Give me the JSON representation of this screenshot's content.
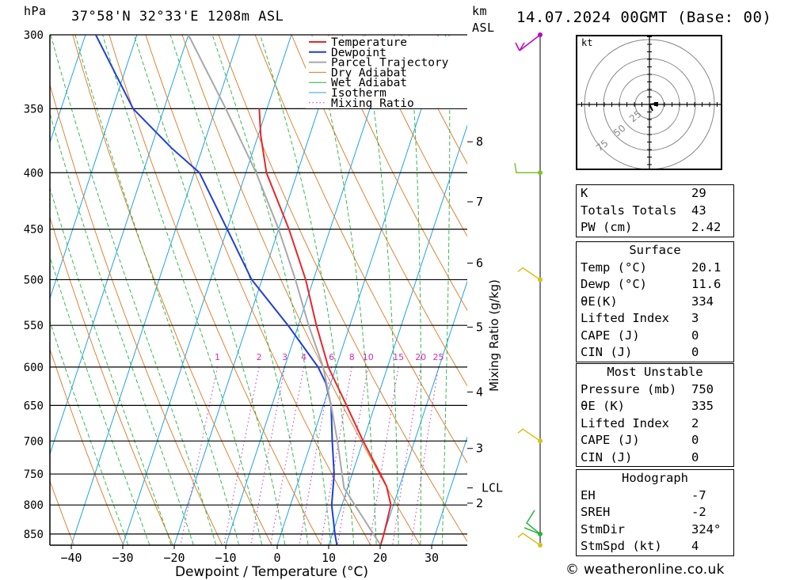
{
  "header": {
    "pressure_unit": "hPa",
    "location": "37°58'N  32°33'E  1208m  ASL",
    "height_unit": "km",
    "height_ref": "ASL",
    "datetime": "14.07.2024  00GMT  (Base: 00)"
  },
  "chart_data": {
    "type": "line",
    "title": "37°58'N  32°33'E  1208m  ASL",
    "xlabel": "Dewpoint / Temperature (°C)",
    "ylabel": "hPa",
    "right_label": "Mixing Ratio (g/kg)",
    "xlim": [
      -45,
      36
    ],
    "ylim": [
      870,
      300
    ],
    "pressure_ticks": [
      300,
      350,
      400,
      450,
      500,
      550,
      600,
      650,
      700,
      750,
      800,
      850
    ],
    "temp_ticks": [
      -40,
      -30,
      -20,
      -10,
      0,
      10,
      20,
      30
    ],
    "height_ticks_km": [
      {
        "label": "8",
        "p": 375
      },
      {
        "label": "7",
        "p": 425
      },
      {
        "label": "6",
        "p": 483
      },
      {
        "label": "5",
        "p": 552
      },
      {
        "label": "4",
        "p": 632
      },
      {
        "label": "3",
        "p": 711
      },
      {
        "label": "LCL",
        "p": 772
      },
      {
        "label": "2",
        "p": 797
      }
    ],
    "mixing_ratio_labels": [
      "1",
      "2",
      "3",
      "4",
      "6",
      "8",
      "10",
      "15",
      "20",
      "25"
    ],
    "legend": [
      "Temperature",
      "Dewpoint",
      "Parcel Trajectory",
      "Dry Adiabat",
      "Wet Adiabat",
      "Isotherm",
      "Mixing Ratio"
    ],
    "legend_position": "top-right",
    "series": [
      {
        "name": "Temperature",
        "color": "#e8262b",
        "points": [
          [
            870,
            20.1
          ],
          [
            850,
            20.0
          ],
          [
            800,
            19.5
          ],
          [
            770,
            17.5
          ],
          [
            750,
            15.5
          ],
          [
            700,
            10.0
          ],
          [
            650,
            4.5
          ],
          [
            600,
            -1.5
          ],
          [
            550,
            -6.5
          ],
          [
            500,
            -11.5
          ],
          [
            450,
            -18.0
          ],
          [
            400,
            -26.0
          ],
          [
            370,
            -29.5
          ],
          [
            350,
            -31.5
          ]
        ]
      },
      {
        "name": "Dewpoint",
        "color": "#1f3fd6",
        "points": [
          [
            870,
            11.6
          ],
          [
            850,
            10.5
          ],
          [
            800,
            8.0
          ],
          [
            750,
            6.5
          ],
          [
            700,
            4.0
          ],
          [
            650,
            1.5
          ],
          [
            620,
            -1.0
          ],
          [
            600,
            -3.5
          ],
          [
            550,
            -12.0
          ],
          [
            500,
            -22.0
          ],
          [
            450,
            -30.0
          ],
          [
            400,
            -39.0
          ],
          [
            380,
            -46.0
          ],
          [
            350,
            -56.0
          ],
          [
            300,
            -68.0
          ]
        ]
      },
      {
        "name": "Parcel Trajectory",
        "color": "#a8a8a8",
        "points": [
          [
            870,
            20.1
          ],
          [
            800,
            12.5
          ],
          [
            772,
            9.3
          ],
          [
            700,
            5.0
          ],
          [
            650,
            1.5
          ],
          [
            600,
            -2.5
          ],
          [
            550,
            -8.0
          ],
          [
            500,
            -13.5
          ],
          [
            450,
            -20.0
          ],
          [
            400,
            -28.0
          ],
          [
            350,
            -38.0
          ],
          [
            300,
            -50.0
          ]
        ]
      }
    ]
  },
  "wind_barbs_hpa": [
    300,
    400,
    500,
    700,
    850,
    870
  ],
  "hodograph": {
    "unit": "kt",
    "rings": [
      "25",
      "50",
      "75"
    ]
  },
  "stats_indices": [
    {
      "label": "K",
      "value": "29"
    },
    {
      "label": "Totals Totals",
      "value": "43"
    },
    {
      "label": "PW (cm)",
      "value": "2.42"
    }
  ],
  "surface": {
    "title": "Surface",
    "rows": [
      {
        "label": "Temp (°C)",
        "value": "20.1"
      },
      {
        "label": "Dewp (°C)",
        "value": "11.6"
      },
      {
        "label": "θE(K)",
        "value": "334"
      },
      {
        "label": "Lifted Index",
        "value": "3"
      },
      {
        "label": "CAPE (J)",
        "value": "0"
      },
      {
        "label": "CIN (J)",
        "value": "0"
      }
    ]
  },
  "most_unstable": {
    "title": "Most Unstable",
    "rows": [
      {
        "label": "Pressure (mb)",
        "value": "750"
      },
      {
        "label": "θE (K)",
        "value": "335"
      },
      {
        "label": "Lifted Index",
        "value": "2"
      },
      {
        "label": "CAPE (J)",
        "value": "0"
      },
      {
        "label": "CIN (J)",
        "value": "0"
      }
    ]
  },
  "hodograph_stats": {
    "title": "Hodograph",
    "rows": [
      {
        "label": "EH",
        "value": "-7"
      },
      {
        "label": "SREH",
        "value": "-2"
      },
      {
        "label": "StmDir",
        "value": "324°"
      },
      {
        "label": "StmSpd (kt)",
        "value": "4"
      }
    ]
  },
  "copyright": "© weatheronline.co.uk"
}
